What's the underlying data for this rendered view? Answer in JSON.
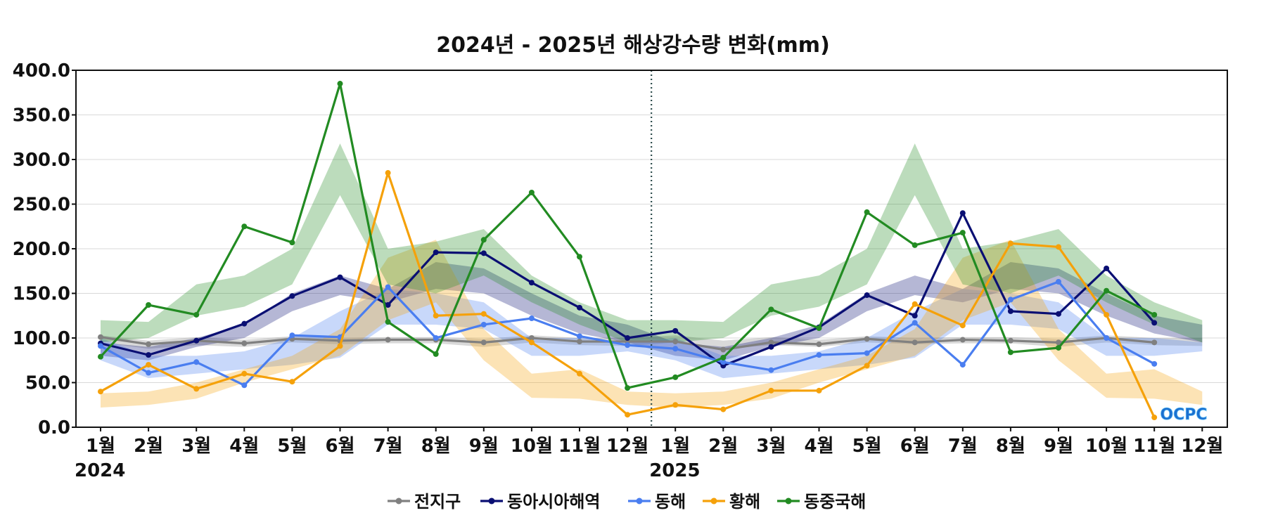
{
  "chart_data": {
    "type": "line",
    "title": "2024년 - 2025년 해상강수량 변화(mm)",
    "xlabel": "",
    "ylabel": "",
    "ylim": [
      0,
      400
    ],
    "yticks": [
      "0.0",
      "50.0",
      "100.0",
      "150.0",
      "200.0",
      "250.0",
      "300.0",
      "350.0",
      "400.0"
    ],
    "grid": "horizontal",
    "categories": [
      "1월",
      "2월",
      "3월",
      "4월",
      "5월",
      "6월",
      "7월",
      "8월",
      "9월",
      "10월",
      "11월",
      "12월",
      "1월",
      "2월",
      "3월",
      "4월",
      "5월",
      "6월",
      "7월",
      "8월",
      "9월",
      "10월",
      "11월",
      "12월"
    ],
    "years": [
      {
        "label": "2024",
        "start_index": 0
      },
      {
        "label": "2025",
        "start_index": 12
      }
    ],
    "year_divider_after_index": 11,
    "legend_position": "bottom",
    "series": [
      {
        "name": "전지구",
        "color": "#808080",
        "values": [
          101,
          93,
          97,
          94,
          99,
          97,
          98,
          98,
          95,
          100,
          96,
          96,
          96,
          87,
          95,
          93,
          99,
          95,
          98,
          97,
          95,
          100,
          95,
          null
        ],
        "band": {
          "low": [
            95,
            88,
            92,
            90,
            95,
            93,
            94,
            94,
            90,
            95,
            92,
            91,
            95,
            88,
            92,
            90,
            95,
            93,
            94,
            94,
            90,
            95,
            92,
            91
          ],
          "high": [
            103,
            97,
            101,
            98,
            102,
            100,
            101,
            101,
            99,
            103,
            100,
            100,
            103,
            97,
            101,
            98,
            102,
            100,
            101,
            101,
            99,
            103,
            100,
            100
          ]
        }
      },
      {
        "name": "동아시아해역",
        "color": "#0a0f73",
        "values": [
          94,
          81,
          97,
          116,
          147,
          168,
          137,
          196,
          195,
          162,
          134,
          100,
          108,
          69,
          90,
          112,
          148,
          125,
          240,
          130,
          127,
          178,
          117,
          null
        ],
        "band": {
          "low": [
            80,
            75,
            90,
            100,
            130,
            148,
            140,
            155,
            150,
            125,
            105,
            95,
            80,
            75,
            90,
            100,
            130,
            148,
            140,
            155,
            150,
            125,
            105,
            95
          ],
          "high": [
            95,
            90,
            100,
            115,
            150,
            170,
            155,
            185,
            178,
            150,
            125,
            115,
            95,
            90,
            100,
            115,
            150,
            170,
            155,
            185,
            178,
            150,
            125,
            115
          ]
        }
      },
      {
        "name": "동해",
        "color": "#4a7ef0",
        "values": [
          91,
          61,
          73,
          47,
          103,
          101,
          157,
          100,
          115,
          122,
          102,
          92,
          88,
          73,
          64,
          81,
          83,
          117,
          70,
          143,
          163,
          100,
          71,
          null
        ],
        "band": {
          "low": [
            75,
            55,
            60,
            65,
            70,
            78,
            115,
            115,
            110,
            80,
            80,
            85,
            75,
            55,
            60,
            65,
            70,
            78,
            115,
            115,
            110,
            80,
            80,
            85
          ],
          "high": [
            100,
            80,
            80,
            85,
            100,
            130,
            155,
            150,
            140,
            100,
            100,
            95,
            100,
            80,
            80,
            85,
            100,
            130,
            155,
            150,
            140,
            100,
            100,
            95
          ]
        }
      },
      {
        "name": "황해",
        "color": "#f5a10a",
        "values": [
          40,
          70,
          43,
          60,
          51,
          91,
          285,
          125,
          127,
          95,
          60,
          14,
          25,
          20,
          41,
          41,
          69,
          138,
          114,
          206,
          202,
          126,
          11,
          null
        ],
        "band": {
          "low": [
            22,
            25,
            32,
            50,
            65,
            80,
            120,
            140,
            75,
            33,
            32,
            25,
            22,
            25,
            32,
            50,
            65,
            80,
            120,
            140,
            75,
            33,
            32,
            25
          ],
          "high": [
            38,
            40,
            50,
            65,
            80,
            110,
            190,
            210,
            110,
            60,
            65,
            40,
            38,
            40,
            50,
            65,
            80,
            110,
            190,
            210,
            110,
            60,
            65,
            40
          ]
        }
      },
      {
        "name": "동중국해",
        "color": "#228b22",
        "values": [
          79,
          137,
          126,
          225,
          207,
          385,
          118,
          82,
          210,
          263,
          191,
          44,
          56,
          78,
          132,
          111,
          241,
          204,
          218,
          84,
          89,
          153,
          126,
          null
        ],
        "band": {
          "low": [
            95,
            100,
            125,
            135,
            160,
            260,
            160,
            150,
            170,
            140,
            115,
            95,
            95,
            100,
            125,
            135,
            160,
            260,
            160,
            150,
            170,
            140,
            115,
            95
          ],
          "high": [
            120,
            118,
            160,
            170,
            200,
            318,
            200,
            208,
            222,
            170,
            140,
            120,
            120,
            118,
            160,
            170,
            200,
            318,
            200,
            208,
            222,
            170,
            140,
            120
          ]
        }
      }
    ]
  },
  "logo": {
    "text": "OCPC"
  }
}
